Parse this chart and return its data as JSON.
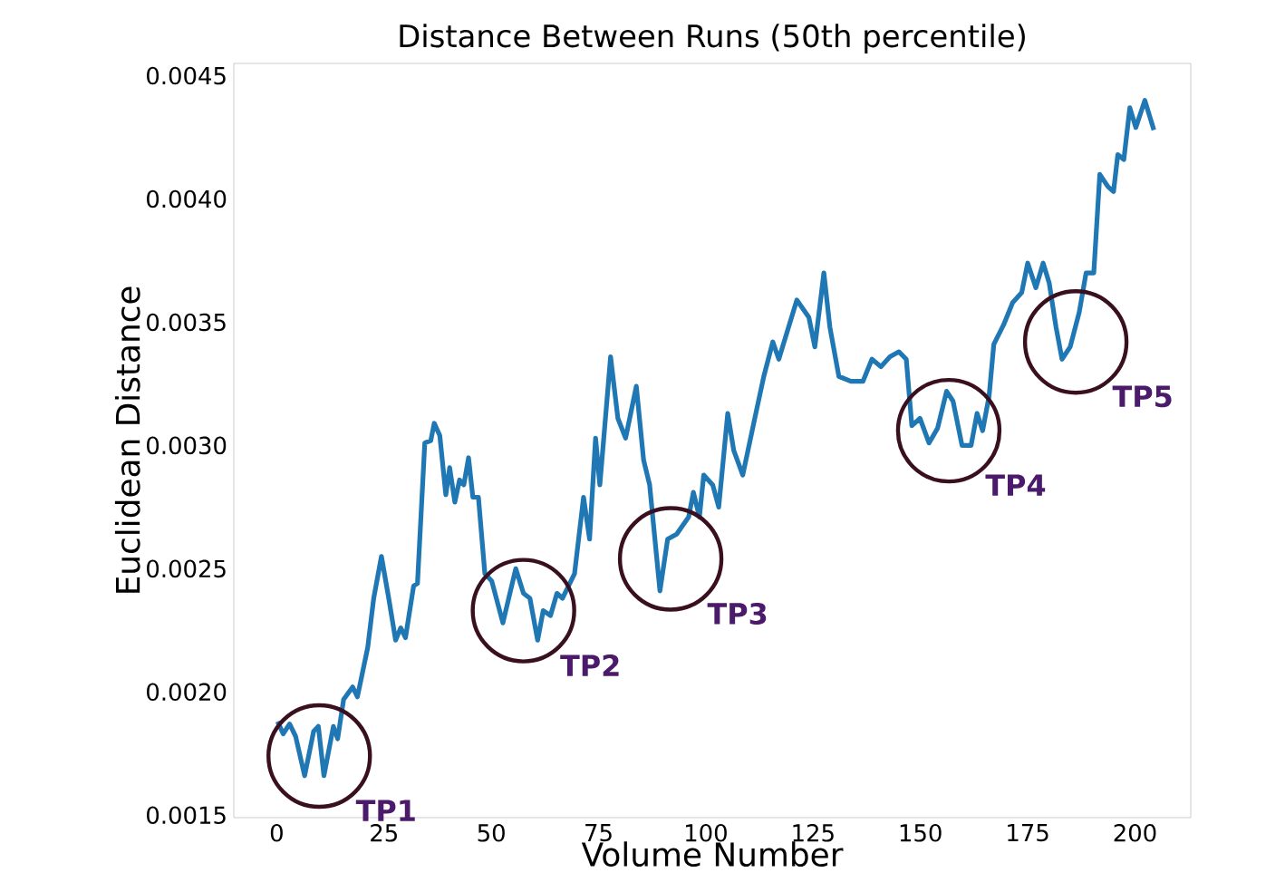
{
  "chart_data": {
    "type": "line",
    "title": "Distance Between Runs (50th percentile)",
    "xlabel": "Volume Number",
    "ylabel": "Euclidean Distance",
    "xlim": [
      -10,
      213
    ],
    "ylim": [
      0.00149,
      0.00455
    ],
    "xticks": [
      0,
      25,
      50,
      75,
      100,
      125,
      150,
      175,
      200
    ],
    "yticks": [
      {
        "value": 0.0015,
        "label": "0.0015"
      },
      {
        "value": 0.002,
        "label": "0.0020"
      },
      {
        "value": 0.0025,
        "label": "0.0025"
      },
      {
        "value": 0.003,
        "label": "0.0030"
      },
      {
        "value": 0.0035,
        "label": "0.0035"
      },
      {
        "value": 0.004,
        "label": "0.0040"
      },
      {
        "value": 0.0045,
        "label": "0.0045"
      }
    ],
    "grid": false,
    "marker": "none",
    "line_style": "solid",
    "series": [
      {
        "color": "#1f77b4",
        "x": [
          0.2,
          1.5,
          3.0,
          4.4,
          6.5,
          8.6,
          9.7,
          11.0,
          13.2,
          14.2,
          15.6,
          17.7,
          18.8,
          21.2,
          22.6,
          24.4,
          26.1,
          27.7,
          28.9,
          30.0,
          31.9,
          32.8,
          34.5,
          35.9,
          36.7,
          38.0,
          39.4,
          40.3,
          41.5,
          42.6,
          43.6,
          44.7,
          45.7,
          47.0,
          48.5,
          50.1,
          52.7,
          55.7,
          57.5,
          59.0,
          60.8,
          62.1,
          63.8,
          65.3,
          66.6,
          69.4,
          71.5,
          72.9,
          74.3,
          75.3,
          77.8,
          79.5,
          81.3,
          83.8,
          85.5,
          86.9,
          89.3,
          91.1,
          93.2,
          96.0,
          97.1,
          98.5,
          99.5,
          101.6,
          103.0,
          105.1,
          106.5,
          108.6,
          111.4,
          113.5,
          115.6,
          117.0,
          121.2,
          124.0,
          125.4,
          127.5,
          128.9,
          131.0,
          133.8,
          136.6,
          138.7,
          140.8,
          142.9,
          145.0,
          146.7,
          148.0,
          149.9,
          152.0,
          154.0,
          156.1,
          157.6,
          159.7,
          161.8,
          163.2,
          164.5,
          166.0,
          167.1,
          169.4,
          171.5,
          173.6,
          175.0,
          176.9,
          178.6,
          180.0,
          181.6,
          183.0,
          184.9,
          187.0,
          188.6,
          190.4,
          191.8,
          193.7,
          195.0,
          196.0,
          197.4,
          198.8,
          200.2,
          202.3,
          204.4
        ],
        "values": [
          0.00188,
          0.00183,
          0.00187,
          0.00182,
          0.00166,
          0.00184,
          0.00186,
          0.00166,
          0.00186,
          0.00181,
          0.00197,
          0.00202,
          0.00198,
          0.00218,
          0.00238,
          0.00255,
          0.00238,
          0.00221,
          0.00226,
          0.00222,
          0.00243,
          0.00244,
          0.00301,
          0.00302,
          0.00309,
          0.00304,
          0.0028,
          0.00291,
          0.00277,
          0.00286,
          0.00284,
          0.00295,
          0.00279,
          0.00279,
          0.00248,
          0.00245,
          0.00228,
          0.0025,
          0.0024,
          0.00238,
          0.00221,
          0.00233,
          0.00231,
          0.0024,
          0.00238,
          0.00248,
          0.00279,
          0.00262,
          0.00303,
          0.00284,
          0.00336,
          0.00311,
          0.00303,
          0.00324,
          0.00294,
          0.00284,
          0.00241,
          0.00262,
          0.00264,
          0.00271,
          0.00281,
          0.00271,
          0.00288,
          0.00284,
          0.00275,
          0.00313,
          0.00298,
          0.00288,
          0.00311,
          0.00328,
          0.00342,
          0.00335,
          0.00359,
          0.00352,
          0.0034,
          0.0037,
          0.00348,
          0.00328,
          0.00326,
          0.00326,
          0.00335,
          0.00332,
          0.00336,
          0.00338,
          0.00335,
          0.00308,
          0.00311,
          0.00301,
          0.00307,
          0.00322,
          0.00318,
          0.003,
          0.003,
          0.00313,
          0.00306,
          0.0032,
          0.00341,
          0.00349,
          0.00358,
          0.00362,
          0.00374,
          0.00364,
          0.00374,
          0.00366,
          0.00348,
          0.00335,
          0.0034,
          0.00354,
          0.0037,
          0.0037,
          0.0041,
          0.00405,
          0.00403,
          0.00418,
          0.00416,
          0.00437,
          0.00429,
          0.0044,
          0.00428
        ]
      }
    ],
    "annotations": [
      {
        "text": "TP1",
        "x": 9.9,
        "y": 0.00174
      },
      {
        "text": "TP2",
        "x": 57.5,
        "y": 0.00233
      },
      {
        "text": "TP3",
        "x": 91.8,
        "y": 0.00254
      },
      {
        "text": "TP4",
        "x": 156.6,
        "y": 0.00306
      },
      {
        "text": "TP5",
        "x": 186.2,
        "y": 0.00342
      }
    ]
  }
}
